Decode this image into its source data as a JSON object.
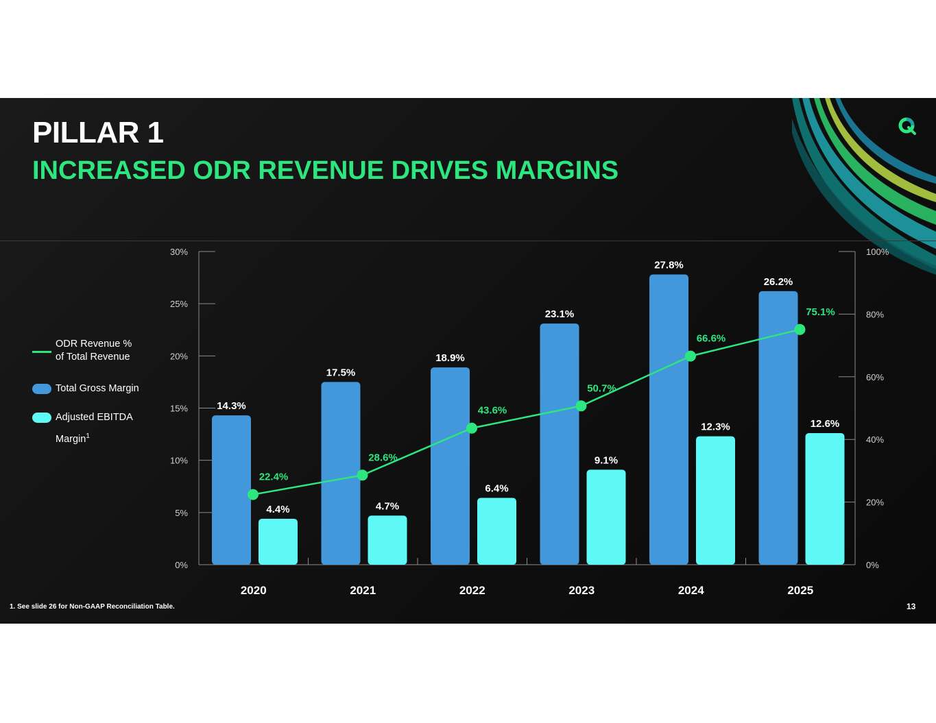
{
  "slide": {
    "eyebrow": "PILLAR 1",
    "headline": "INCREASED ODR REVENUE DRIVES MARGINS",
    "footnote": "1. See slide 26 for Non-GAAP Reconciliation Table.",
    "page_number": "13"
  },
  "colors": {
    "background": "#111111",
    "accent_green": "#2ee67f",
    "gross_margin_blue": "#4397db",
    "ebitda_cyan": "#5ef8f7",
    "axis_gray": "#8c8c8c"
  },
  "legend": {
    "odr_line": "ODR Revenue %",
    "odr_line_2": "of Total Revenue",
    "gross_margin": "Total Gross Margin",
    "ebitda": "Adjusted EBITDA",
    "ebitda_2": "Margin",
    "ebitda_sup": "1"
  },
  "chart_data": {
    "type": "bar",
    "categories": [
      "2020",
      "2021",
      "2022",
      "2023",
      "2024",
      "2025"
    ],
    "series": [
      {
        "name": "Total Gross Margin",
        "axis": "left",
        "values": [
          14.3,
          17.5,
          18.9,
          23.1,
          27.8,
          26.2
        ],
        "labels": [
          "14.3%",
          "17.5%",
          "18.9%",
          "23.1%",
          "27.8%",
          "26.2%"
        ]
      },
      {
        "name": "Adjusted EBITDA Margin",
        "axis": "left",
        "values": [
          4.4,
          4.7,
          6.4,
          9.1,
          12.3,
          12.6
        ],
        "labels": [
          "4.4%",
          "4.7%",
          "6.4%",
          "9.1%",
          "12.3%",
          "12.6%"
        ]
      },
      {
        "name": "ODR Revenue % of Total Revenue",
        "type": "line",
        "axis": "right",
        "values": [
          22.4,
          28.6,
          43.6,
          50.7,
          66.6,
          75.1
        ],
        "labels": [
          "22.4%",
          "28.6%",
          "43.6%",
          "50.7%",
          "66.6%",
          "75.1%"
        ]
      }
    ],
    "y_left": {
      "ylim": [
        0,
        30
      ],
      "ticks": [
        "0%",
        "5%",
        "10%",
        "15%",
        "20%",
        "25%",
        "30%"
      ]
    },
    "y_right": {
      "ylim": [
        0,
        100
      ],
      "ticks": [
        "0%",
        "20%",
        "40%",
        "60%",
        "80%",
        "100%"
      ]
    },
    "legend_position": "left",
    "grid": false
  }
}
